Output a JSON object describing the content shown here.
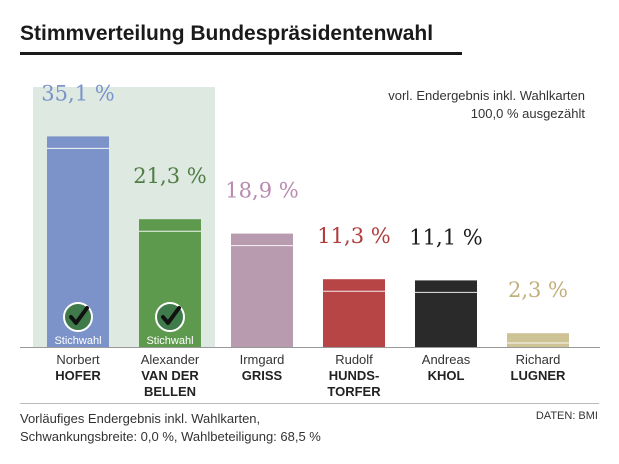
{
  "title": "Stimmverteilung Bundespräsidentenwahl",
  "status": {
    "line1": "vorl. Endergebnis inkl. Wahlkarten",
    "line2": "100,0 % ausgezählt"
  },
  "footnote": {
    "line1": "Vorläufiges Endergebnis inkl. Wahlkarten,",
    "line2": "Schwankungsbreite: 0,0 %, Wahlbeteiligung: 68,5 %"
  },
  "source": "DATEN: BMI",
  "runoff_label": "Stichwahl",
  "colors": {
    "highlight_bg": "#dde9e1",
    "baseline": "#999999",
    "check_circle": "#3f7a4a"
  },
  "chart_data": {
    "type": "bar",
    "categories": [
      "Norbert HOFER",
      "Alexander VAN DER BELLEN",
      "Irmgard GRISS",
      "Rudolf HUNDSTORFER",
      "Andreas KHOL",
      "Richard LUGNER"
    ],
    "values": [
      35.1,
      21.3,
      18.9,
      11.3,
      11.1,
      2.3
    ],
    "value_labels": [
      "35,1 %",
      "21,3 %",
      "18,9 %",
      "11,3 %",
      "11,1 %",
      "2,3 %"
    ],
    "ylim": [
      0,
      40
    ],
    "candidates": [
      {
        "first": "Norbert",
        "last": [
          "HOFER"
        ],
        "color": "#7b93c9",
        "label_color": "#7b93c9",
        "runoff": true
      },
      {
        "first": "Alexander",
        "last": [
          "VAN DER",
          "BELLEN"
        ],
        "color": "#5e9a4e",
        "label_color": "#4f7d44",
        "runoff": true
      },
      {
        "first": "Irmgard",
        "last": [
          "GRISS"
        ],
        "color": "#b99bb0",
        "label_color": "#b98ab0",
        "runoff": false
      },
      {
        "first": "Rudolf",
        "last": [
          "HUNDS-",
          "TORFER"
        ],
        "color": "#b84545",
        "label_color": "#b03c3c",
        "runoff": false
      },
      {
        "first": "Andreas",
        "last": [
          "KHOL"
        ],
        "color": "#2a2a2a",
        "label_color": "#1a1a1a",
        "runoff": false
      },
      {
        "first": "Richard",
        "last": [
          "LUGNER"
        ],
        "color": "#cdc394",
        "label_color": "#c2b07c",
        "runoff": false
      }
    ]
  }
}
